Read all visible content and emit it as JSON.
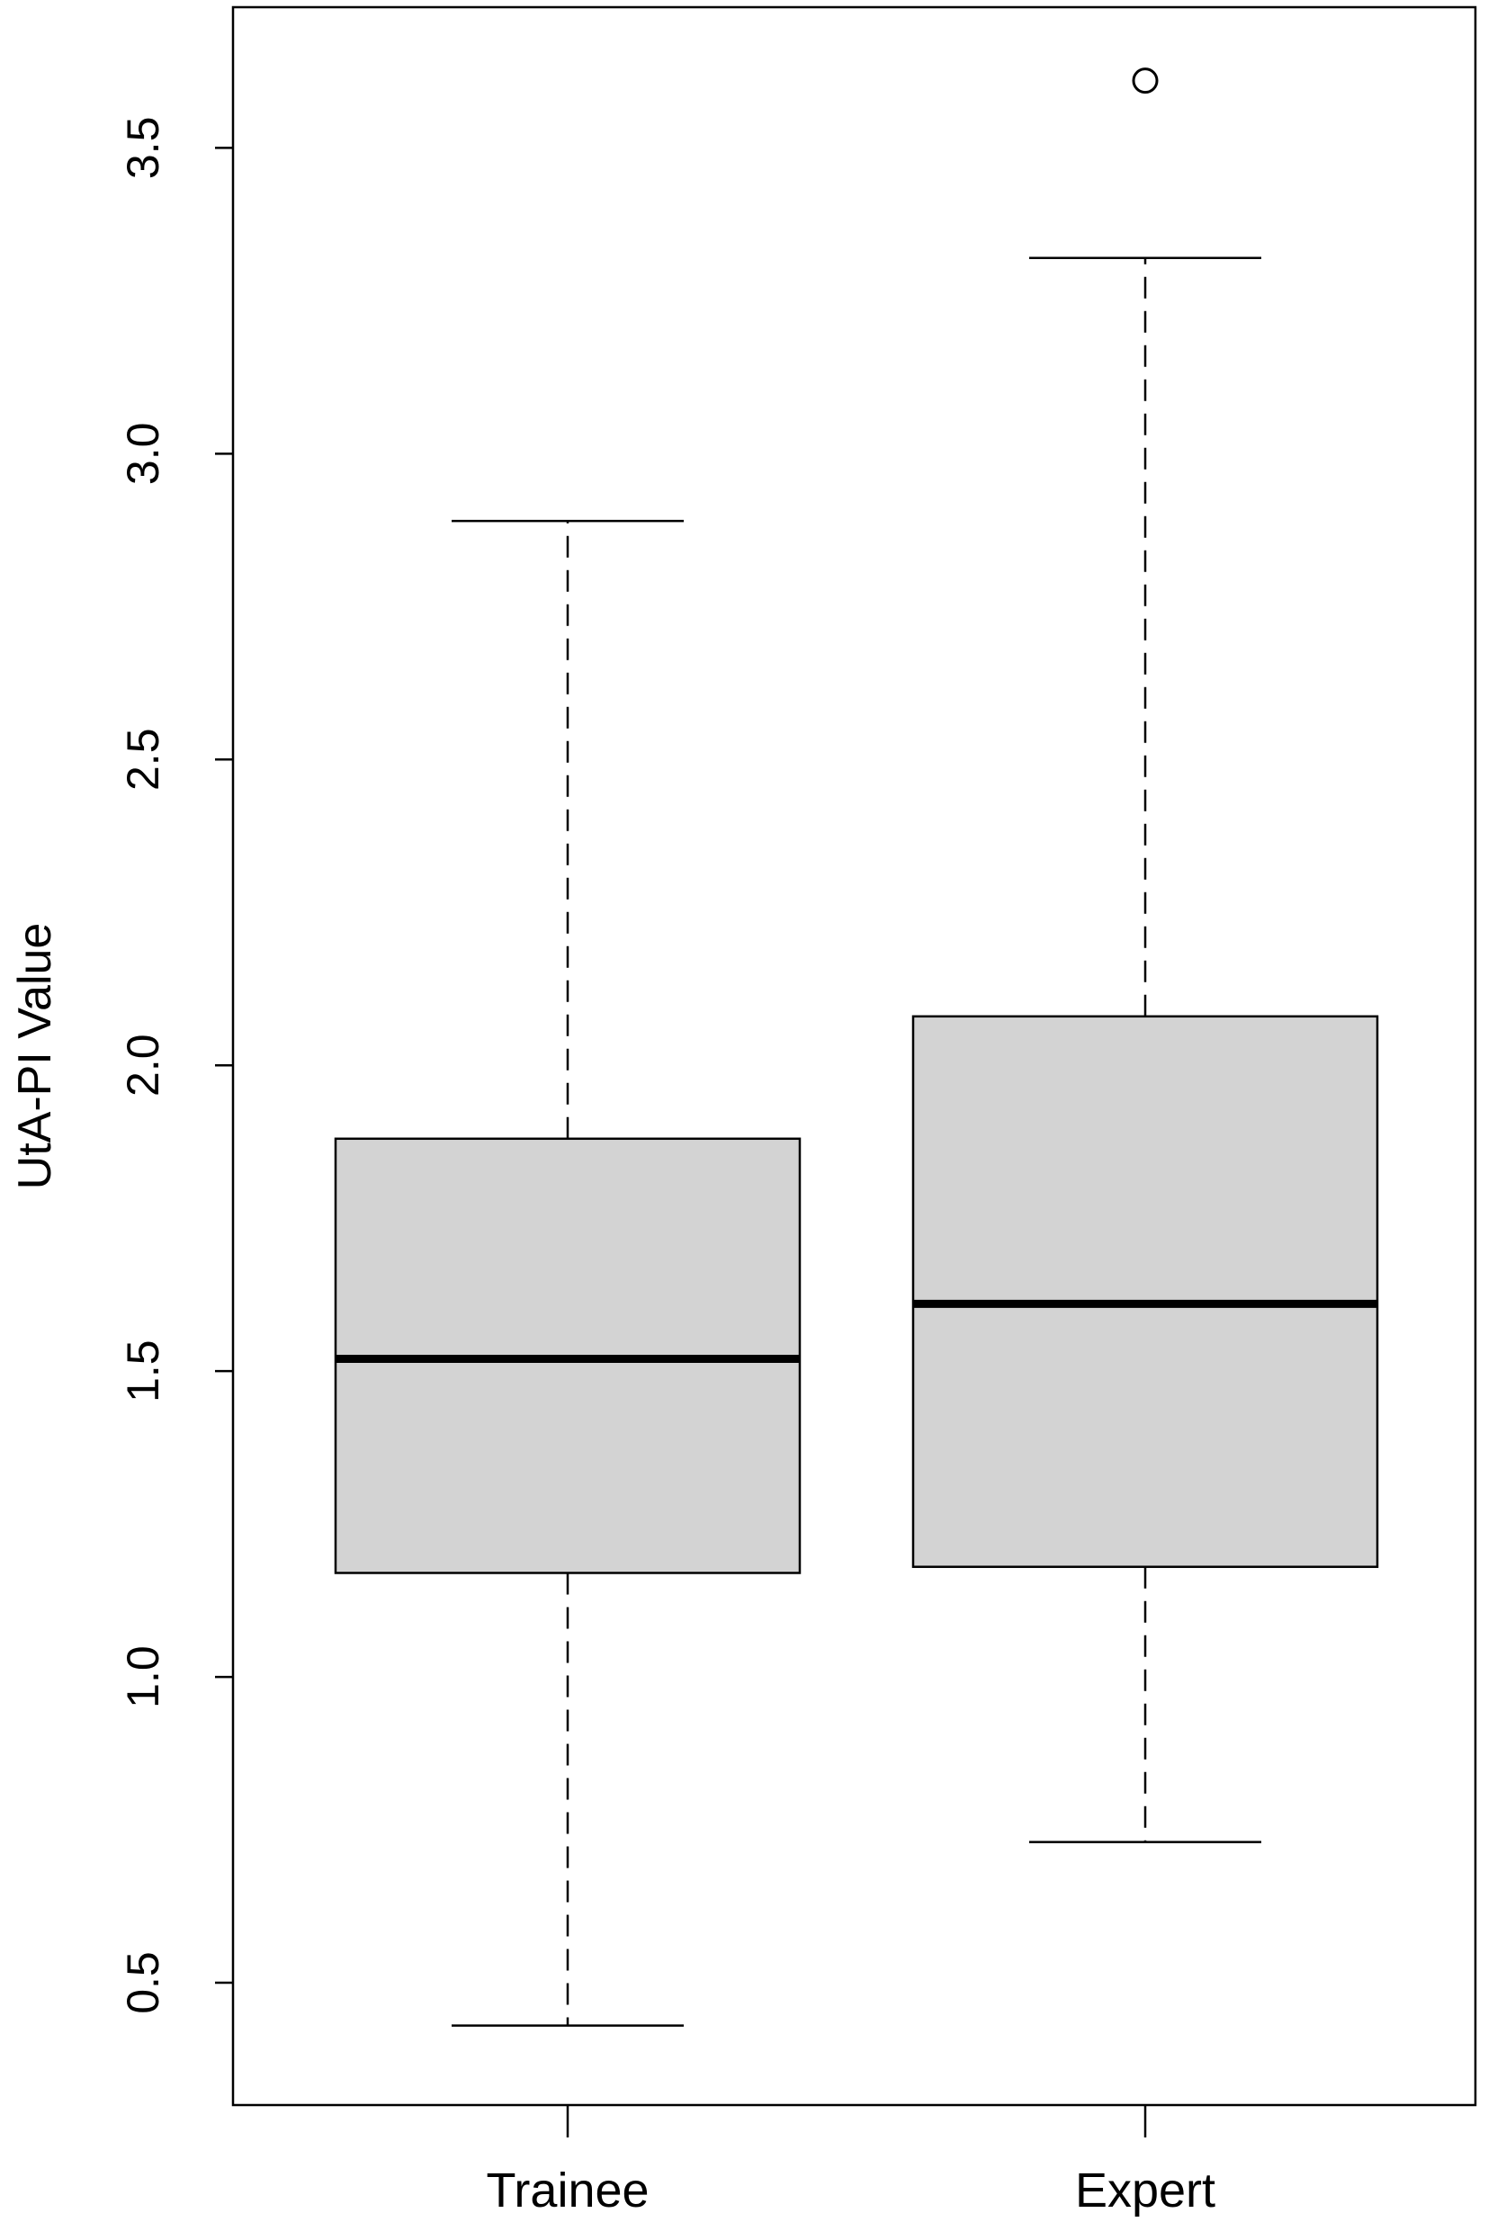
{
  "chart_data": {
    "type": "boxplot",
    "title": "",
    "xlabel": "",
    "ylabel": "UtA-PI Value",
    "ylim": [
      0.3,
      3.73
    ],
    "yticks": [
      0.5,
      1.0,
      1.5,
      2.0,
      2.5,
      3.0,
      3.5
    ],
    "ytick_labels": [
      "0.5",
      "1.0",
      "1.5",
      "2.0",
      "2.5",
      "3.0",
      "3.5"
    ],
    "categories": [
      "Trainee",
      "Expert"
    ],
    "boxes": [
      {
        "name": "Trainee",
        "whisker_low": 0.43,
        "q1": 1.17,
        "median": 1.52,
        "q3": 1.88,
        "whisker_high": 2.89,
        "outliers": []
      },
      {
        "name": "Expert",
        "whisker_low": 0.73,
        "q1": 1.18,
        "median": 1.61,
        "q3": 2.08,
        "whisker_high": 3.32,
        "outliers": [
          3.61
        ]
      }
    ],
    "box_fill": "#d3d3d3",
    "line_color": "#000000",
    "grid": false,
    "legend": "none"
  }
}
